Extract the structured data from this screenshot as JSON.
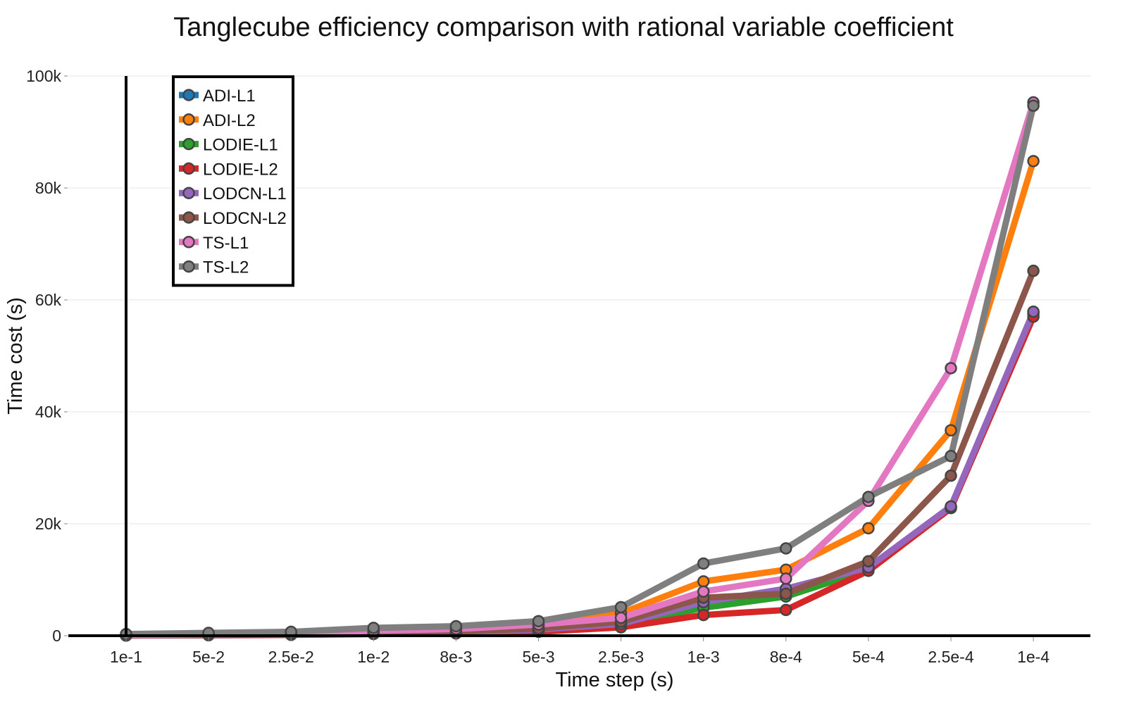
{
  "chart_data": {
    "type": "line",
    "title": "Tanglecube efficiency comparison with rational variable coefficient",
    "xlabel": "Time step (s)",
    "ylabel": "Time cost (s)",
    "categories": [
      "1e-1",
      "5e-2",
      "2.5e-2",
      "1e-2",
      "8e-3",
      "5e-3",
      "2.5e-3",
      "1e-3",
      "8e-4",
      "5e-4",
      "2.5e-4",
      "1e-4"
    ],
    "ylim": [
      0,
      100000
    ],
    "yticks": [
      0,
      20000,
      40000,
      60000,
      80000,
      100000
    ],
    "ytick_labels": [
      "0",
      "20k",
      "40k",
      "60k",
      "80k",
      "100k"
    ],
    "grid": true,
    "legend_position": "top-left",
    "series": [
      {
        "name": "ADI-L1",
        "color": "#1f77b4",
        "values": [
          50,
          120,
          220,
          450,
          600,
          1100,
          2100,
          5800,
          8100,
          12000,
          23000,
          57800
        ]
      },
      {
        "name": "ADI-L2",
        "color": "#ff7f0e",
        "values": [
          80,
          200,
          350,
          750,
          1000,
          1800,
          4000,
          9700,
          11800,
          19200,
          36700,
          84800
        ]
      },
      {
        "name": "LODIE-L1",
        "color": "#2ca02c",
        "values": [
          40,
          100,
          180,
          350,
          500,
          900,
          1900,
          5000,
          7000,
          11800,
          23000,
          57500
        ]
      },
      {
        "name": "LODIE-L2",
        "color": "#d62728",
        "values": [
          30,
          80,
          150,
          300,
          400,
          700,
          1500,
          3700,
          4600,
          11600,
          22800,
          57000
        ]
      },
      {
        "name": "LODCN-L1",
        "color": "#9467bd",
        "values": [
          50,
          120,
          220,
          450,
          600,
          1100,
          2100,
          6000,
          8400,
          12200,
          23100,
          57900
        ]
      },
      {
        "name": "LODCN-L2",
        "color": "#8c564b",
        "values": [
          60,
          150,
          250,
          500,
          700,
          1300,
          2500,
          6800,
          7500,
          13300,
          28600,
          65200
        ]
      },
      {
        "name": "TS-L1",
        "color": "#e377c2",
        "values": [
          100,
          250,
          400,
          900,
          1200,
          2000,
          3200,
          7900,
          10200,
          24100,
          47800,
          95300
        ]
      },
      {
        "name": "TS-L2",
        "color": "#7f7f7f",
        "values": [
          300,
          500,
          700,
          1400,
          1700,
          2600,
          5100,
          12900,
          15600,
          24800,
          32100,
          94700
        ]
      }
    ]
  }
}
